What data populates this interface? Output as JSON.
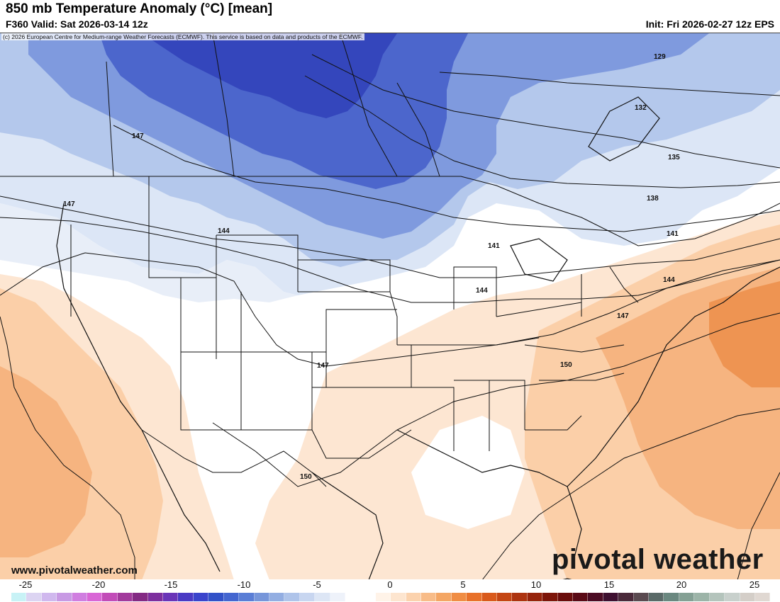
{
  "header": {
    "title": "850 mb Temperature Anomaly (°C) [mean]",
    "valid": "F360 Valid: Sat 2026-03-14 12z",
    "init": "Init: Fri 2026-02-27 12z EPS"
  },
  "credit": "(c) 2026 European Centre for Medium-range Weather Forecasts (ECMWF). This service is based on data and products of the ECMWF.",
  "footer": {
    "site": "www.pivotalweather.com",
    "brand": "pivotal weather"
  },
  "contour_labels": [
    "129",
    "132",
    "135",
    "138",
    "141",
    "141",
    "144",
    "144",
    "144",
    "147",
    "147",
    "147",
    "147",
    "150",
    "150"
  ],
  "colorbar": {
    "ticks": [
      "-25",
      "-20",
      "-15",
      "-10",
      "-5",
      "0",
      "5",
      "10",
      "15",
      "20",
      "25"
    ],
    "colors": [
      "#c8f2f6",
      "#dcd4f2",
      "#d0b8ee",
      "#c89ae4",
      "#d07ee0",
      "#d966d6",
      "#c24cb8",
      "#a23a9c",
      "#842a84",
      "#7d2f9e",
      "#6a35b8",
      "#4a3ac4",
      "#3a44cc",
      "#3252c8",
      "#4466d0",
      "#5a7ed6",
      "#7796da",
      "#93aee2",
      "#afc4ea",
      "#c8d6f0",
      "#dde6f5",
      "#eef2fa",
      "#ffffff",
      "#ffffff",
      "#fff3e8",
      "#fde5cf",
      "#fbd2ad",
      "#f8bc88",
      "#f4a664",
      "#f08d44",
      "#e8712a",
      "#d95a1c",
      "#c44614",
      "#ad3410",
      "#96240c",
      "#7d160a",
      "#6a0d0c",
      "#5a0a16",
      "#4c0c24",
      "#3e1030",
      "#4a2a3a",
      "#5a4a50",
      "#5a6a68",
      "#6a8880",
      "#84a094",
      "#9cb4a8",
      "#b4c4bc",
      "#c8d0cc",
      "#d4cec8",
      "#e0d8d2"
    ]
  },
  "map_colors": {
    "cold_deep": "#3a52c8",
    "cold_mid": "#6a86d6",
    "cold_light": "#b4c8ec",
    "cold_pale": "#dce6f6",
    "warm_pale": "#fde6d2",
    "warm_light": "#fbcfa8",
    "warm_mid": "#f5ae78",
    "warm_deep": "#ee9050"
  }
}
